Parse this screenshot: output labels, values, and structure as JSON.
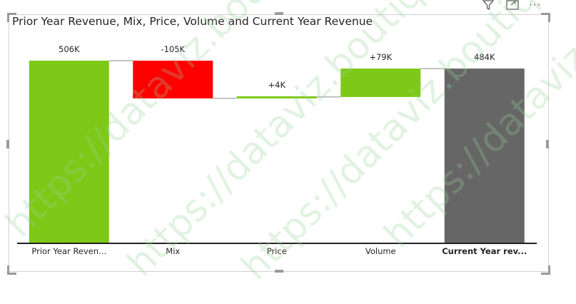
{
  "chart_data": {
    "type": "bar",
    "subtype": "waterfall",
    "title": "Prior Year Revenue, Mix, Price, Volume and Current Year Revenue",
    "categories": [
      "Prior Year Reven...",
      "Mix",
      "Price",
      "Volume",
      "Current Year rev..."
    ],
    "values": [
      506,
      -105,
      4,
      79,
      484
    ],
    "data_labels": [
      "506K",
      "-105K",
      "+4K",
      "+79K",
      "484K"
    ],
    "bar_kinds": [
      "total",
      "delta",
      "delta",
      "delta",
      "total"
    ],
    "unit_suffix": "K",
    "ylim": [
      0,
      506
    ],
    "grid": false,
    "colors": {
      "increase": "#7ec918",
      "decrease": "#ff0000",
      "total_start": "#7ec918",
      "total_end": "#666666",
      "connector": "#8a8a8a",
      "axis": "#222222"
    }
  },
  "watermark": "https://dataviz.boutique",
  "toolbar": {
    "filter_icon": "filter-icon",
    "focus_icon": "focus-mode-icon",
    "more_icon": "more-options-icon",
    "more_glyph": "···"
  }
}
